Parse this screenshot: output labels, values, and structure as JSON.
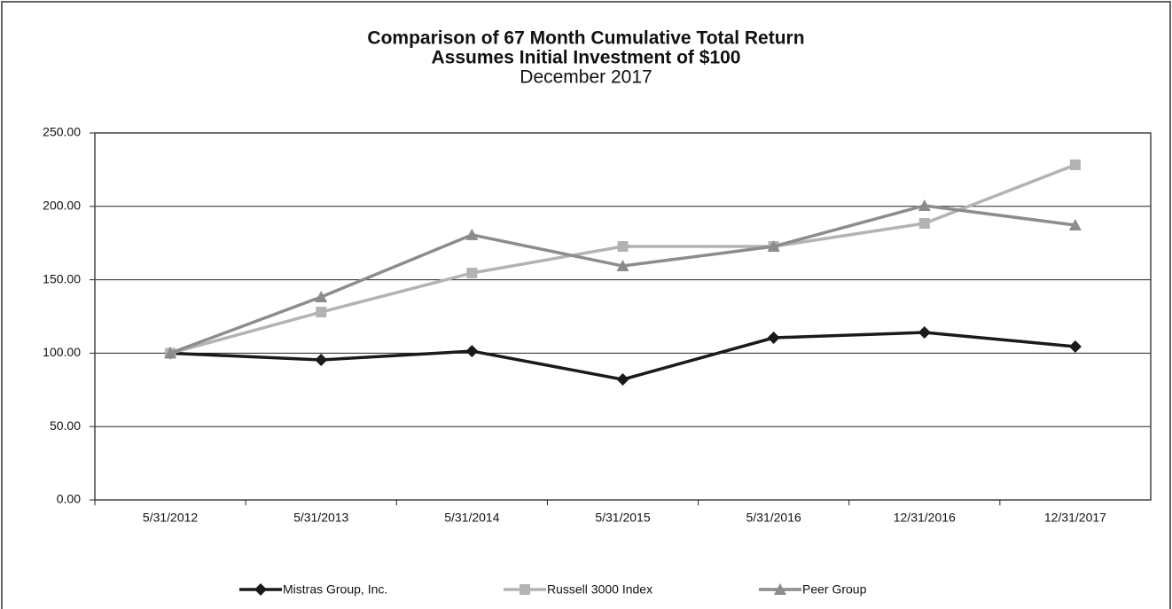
{
  "chart_data": {
    "type": "line",
    "title": "Comparison of 67 Month Cumulative Total Return",
    "subtitle": "Assumes Initial Investment of $100",
    "date_note": "December 2017",
    "categories": [
      "5/31/2012",
      "5/31/2013",
      "5/31/2014",
      "5/31/2015",
      "5/31/2016",
      "12/31/2016",
      "12/31/2017"
    ],
    "series": [
      {
        "name": "Mistras Group, Inc.",
        "color": "#1a1a1a",
        "marker": "diamond",
        "values": [
          100,
          95.4,
          101.4,
          82.1,
          110.5,
          114.1,
          104.5
        ]
      },
      {
        "name": "Russell 3000 Index",
        "color": "#b3b3b3",
        "marker": "square",
        "values": [
          100,
          128,
          154.6,
          172.7,
          172.7,
          188.4,
          228.3
        ]
      },
      {
        "name": "Peer Group",
        "color": "#8c8c8c",
        "marker": "triangle",
        "values": [
          100,
          138.3,
          180.6,
          159.4,
          172.7,
          200.5,
          187.2
        ]
      }
    ],
    "ylim": [
      0,
      250
    ],
    "yticks": [
      {
        "value": 0,
        "label": "0.00"
      },
      {
        "value": 50,
        "label": "50.00"
      },
      {
        "value": 100,
        "label": "100.00"
      },
      {
        "value": 150,
        "label": "150.00"
      },
      {
        "value": 200,
        "label": "200.00"
      },
      {
        "value": 250,
        "label": "250.00"
      }
    ],
    "grid": true,
    "legend": "bottom"
  }
}
